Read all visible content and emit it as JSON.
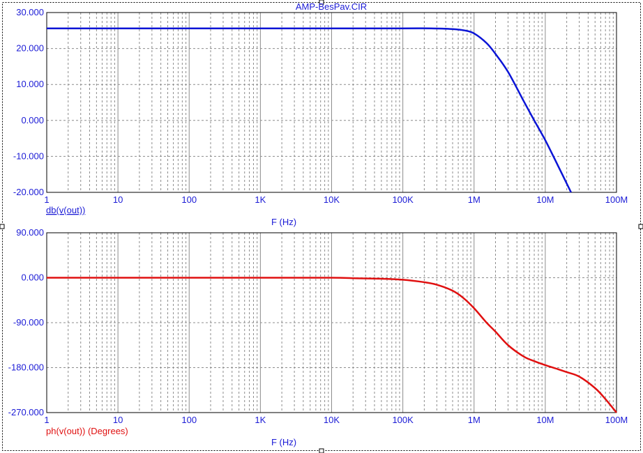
{
  "window": {
    "title": "AMP-BesPav.CIR"
  },
  "colors": {
    "axis_text": "#1b1bd6",
    "grid": "#8c8c8c",
    "frame": "#000000"
  },
  "chart_data": [
    {
      "type": "line",
      "xscale": "log",
      "xlim": [
        1,
        100000000
      ],
      "ylim": [
        -20,
        30
      ],
      "yticks": [
        "30.000",
        "20.000",
        "10.000",
        "0.000",
        "-10.000",
        "-20.000"
      ],
      "ytick_values": [
        30,
        20,
        10,
        0,
        -10,
        -20
      ],
      "xticks": [
        "1",
        "10",
        "100",
        "1K",
        "10K",
        "100K",
        "1M",
        "10M",
        "100M"
      ],
      "xtick_values": [
        1,
        10,
        100,
        1000,
        10000,
        100000,
        1000000,
        10000000,
        100000000
      ],
      "xlabel": "F (Hz)",
      "series": [
        {
          "name": "db(v(out))",
          "color": "#0a14d6",
          "x": [
            1,
            10,
            100,
            1000,
            10000,
            100000,
            250000,
            500000,
            750000,
            1000000,
            1500000,
            2000000,
            3000000,
            5000000,
            7000000,
            10000000,
            15000000,
            23000000
          ],
          "y": [
            25.6,
            25.6,
            25.6,
            25.6,
            25.6,
            25.6,
            25.6,
            25.4,
            25.0,
            24.2,
            21.5,
            18.5,
            13.5,
            5.3,
            0.0,
            -5.5,
            -12.5,
            -20.0
          ]
        }
      ]
    },
    {
      "type": "line",
      "xscale": "log",
      "xlim": [
        1,
        100000000
      ],
      "ylim": [
        -270,
        90
      ],
      "yticks": [
        "90.000",
        "0.000",
        "-90.000",
        "-180.000",
        "-270.000"
      ],
      "ytick_values": [
        90,
        0,
        -90,
        -180,
        -270
      ],
      "xticks": [
        "1",
        "10",
        "100",
        "1K",
        "10K",
        "100K",
        "1M",
        "10M",
        "100M"
      ],
      "xtick_values": [
        1,
        10,
        100,
        1000,
        10000,
        100000,
        1000000,
        10000000,
        100000000
      ],
      "xlabel": "F (Hz)",
      "series": [
        {
          "name": "ph(v(out)) (Degrees)",
          "color": "#e01010",
          "x": [
            1,
            10,
            100,
            1000,
            10000,
            20000,
            50000,
            100000,
            200000,
            300000,
            500000,
            700000,
            1000000,
            1500000,
            2000000,
            3000000,
            5000000,
            7000000,
            10000000,
            15000000,
            20000000,
            30000000,
            50000000,
            70000000,
            100000000
          ],
          "y": [
            0,
            0,
            0,
            0,
            0,
            -1,
            -2,
            -4,
            -9,
            -14,
            -26,
            -40,
            -61,
            -90,
            -108,
            -135,
            -158,
            -167,
            -175,
            -183,
            -189,
            -198,
            -221,
            -243,
            -270
          ]
        }
      ]
    }
  ]
}
